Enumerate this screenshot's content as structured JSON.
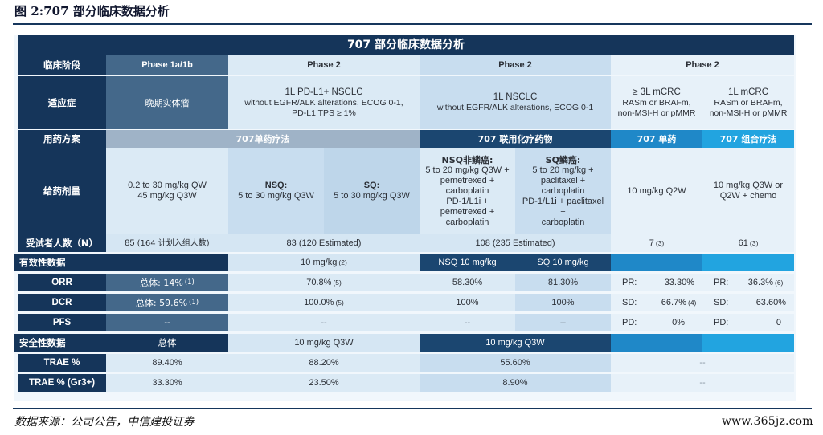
{
  "figure_title": "图 2:707 部分临床数据分析",
  "table_title": "707 部分临床数据分析",
  "row_labels": {
    "stage": "临床阶段",
    "indication": "适应症",
    "regimen": "用药方案",
    "dose": "给药剂量",
    "n": "受试者人数（N）",
    "efficacy": "有效性数据",
    "orr": "ORR",
    "dcr": "DCR",
    "pfs": "PFS",
    "safety": "安全性数据",
    "trae": "TRAE %",
    "trae_gr3": "TRAE % (Gr3+)"
  },
  "phases": {
    "p1": "Phase 1a/1b",
    "p2a": "Phase 2",
    "p2b": "Phase 2",
    "p2c": "Phase 2"
  },
  "indications": {
    "p1": "晚期实体瘤",
    "nsclc_pdl1_1": "1L PD-L1+ NSCLC",
    "nsclc_pdl1_2": "without EGFR/ALK alterations, ECOG 0-1,",
    "nsclc_pdl1_3": "PD-L1 TPS ≥ 1%",
    "nsclc_1": "1L NSCLC",
    "nsclc_2": "without EGFR/ALK alterations, ECOG 0-1",
    "crc3_1": "≥ 3L mCRC",
    "crc3_2": "RASm or BRAFm,",
    "crc3_3": "non-MSI-H or pMMR",
    "crc1_1": "1L mCRC",
    "crc1_2": "RASm or BRAFm,",
    "crc1_3": "non-MSI-H or pMMR"
  },
  "regimens": {
    "mono": "707单药疗法",
    "chemo_combo": "707 联用化疗药物",
    "mono_crc": "707 单药",
    "combo_crc": "707 组合疗法"
  },
  "doses": {
    "p1_1": "0.2 to 30 mg/kg QW",
    "p1_2": "45 mg/kg Q3W",
    "nsq_title": "NSQ:",
    "nsq_dose": "5 to 30 mg/kg Q3W",
    "sq_title": "SQ:",
    "sq_dose": "5 to 30 mg/kg Q3W",
    "nsq_chemo": [
      "NSQ非鳞癌:",
      "5 to 20 mg/kg Q3W +",
      "pemetrexed +",
      "carboplatin",
      "PD-1/L1i +",
      "pemetrexed +",
      "carboplatin"
    ],
    "sq_chemo": [
      "SQ鳞癌:",
      "5 to 20 mg/kg +",
      "paclitaxel +",
      "carboplatin",
      "PD-1/L1i + paclitaxel",
      "+",
      "carboplatin"
    ],
    "crc3": "10 mg/kg Q2W",
    "crc1_1": "10 mg/kg Q3W or",
    "crc1_2": "Q2W + chemo"
  },
  "n_values": {
    "p1": "85",
    "p1_note": "(164 计划入组人数)",
    "mono": "83 (120 Estimated)",
    "chemo": "108 (235 Estimated)",
    "crc3": "7",
    "crc3_ref": "(3)",
    "crc1": "61",
    "crc1_ref": "(3)"
  },
  "efficacy_header": {
    "mono": "10 mg/kg",
    "mono_ref": "(2)",
    "nsq": "NSQ 10 mg/kg",
    "sq": "SQ 10 mg/kg"
  },
  "orr": {
    "p1": "总体: 14%",
    "p1_ref": "(1)",
    "mono": "70.8%",
    "mono_ref": "(5)",
    "nsq": "58.30%",
    "sq": "81.30%",
    "crc3_k": "PR:",
    "crc3_v": "33.30%",
    "crc1_k": "PR:",
    "crc1_v": "36.3%",
    "crc1_ref": "(6)"
  },
  "dcr": {
    "p1": "总体: 59.6%",
    "p1_ref": "(1)",
    "mono": "100.0%",
    "mono_ref": "(5)",
    "nsq": "100%",
    "sq": "100%",
    "crc3_k": "SD:",
    "crc3_v": "66.7%",
    "crc3_ref": "(4)",
    "crc1_k": "SD:",
    "crc1_v": "63.60%"
  },
  "pfs": {
    "p1": "--",
    "mono": "--",
    "nsq": "--",
    "sq": "--",
    "crc3_k": "PD:",
    "crc3_v": "0%",
    "crc1_k": "PD:",
    "crc1_v": "0"
  },
  "safety_header": {
    "p1": "总体",
    "mono": "10 mg/kg Q3W",
    "chemo": "10 mg/kg Q3W"
  },
  "trae": {
    "p1": "89.40%",
    "mono": "88.20%",
    "chemo": "55.60%",
    "crc": "--"
  },
  "trae_gr3": {
    "p1": "33.30%",
    "mono": "23.50%",
    "chemo": "8.90%",
    "crc": "--"
  },
  "source": "数据来源：公司公告，中信建投证券",
  "watermark": "www.365jz.com",
  "colors": {
    "navy": "#15355a",
    "steel": "#44688a",
    "blue": "#1f88c8",
    "cyan": "#22a4e0",
    "pale": "#dbeaf5"
  }
}
